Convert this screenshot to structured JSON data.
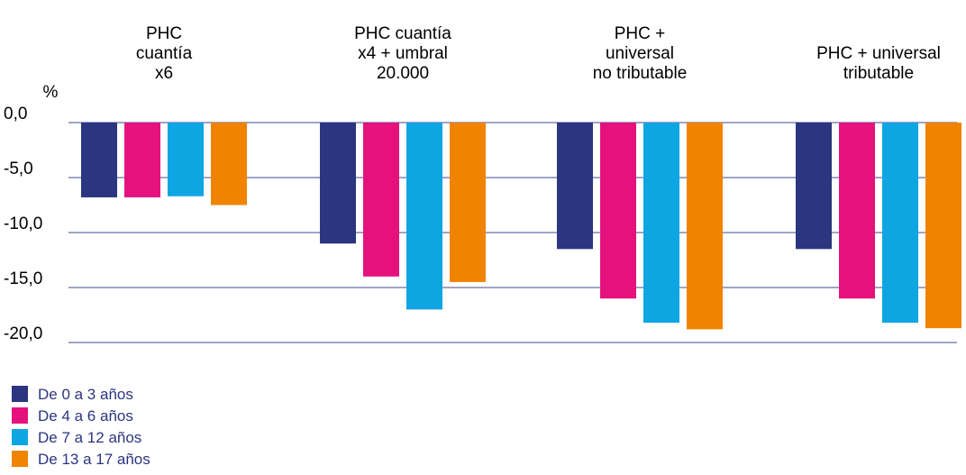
{
  "chart_data": {
    "type": "bar",
    "unit_label": "%",
    "categories": [
      [
        "PHC",
        "cuantía",
        "x6"
      ],
      [
        "PHC cuantía",
        "x4 + umbral",
        "20.000"
      ],
      [
        "PHC +",
        "universal",
        "no tributable"
      ],
      [
        "PHC + universal",
        "tributable"
      ]
    ],
    "series": [
      {
        "name": "De 0 a 3 años",
        "color": "#2b3580",
        "values": [
          -6.8,
          -11.0,
          -11.5,
          -11.5
        ]
      },
      {
        "name": "De 4 a 6 años",
        "color": "#e5127d",
        "values": [
          -6.8,
          -14.0,
          -16.0,
          -16.0
        ]
      },
      {
        "name": "De 7 a 12 años",
        "color": "#0ea5e3",
        "values": [
          -6.7,
          -17.0,
          -18.2,
          -18.2
        ]
      },
      {
        "name": "De 13 a 17 años",
        "color": "#f08300",
        "values": [
          -7.5,
          -14.5,
          -18.8,
          -18.7
        ]
      }
    ],
    "yticks": [
      "0,0",
      "-5,0",
      "-10,0",
      "-15,0",
      "-20,0"
    ],
    "ytick_values": [
      0,
      -5,
      -10,
      -15,
      -20
    ],
    "ylim": [
      -20,
      0
    ],
    "grid": true,
    "legend_position": "bottom-left",
    "gridline_color": "#3f4a8c",
    "legend_text_color": "#2b3580"
  }
}
